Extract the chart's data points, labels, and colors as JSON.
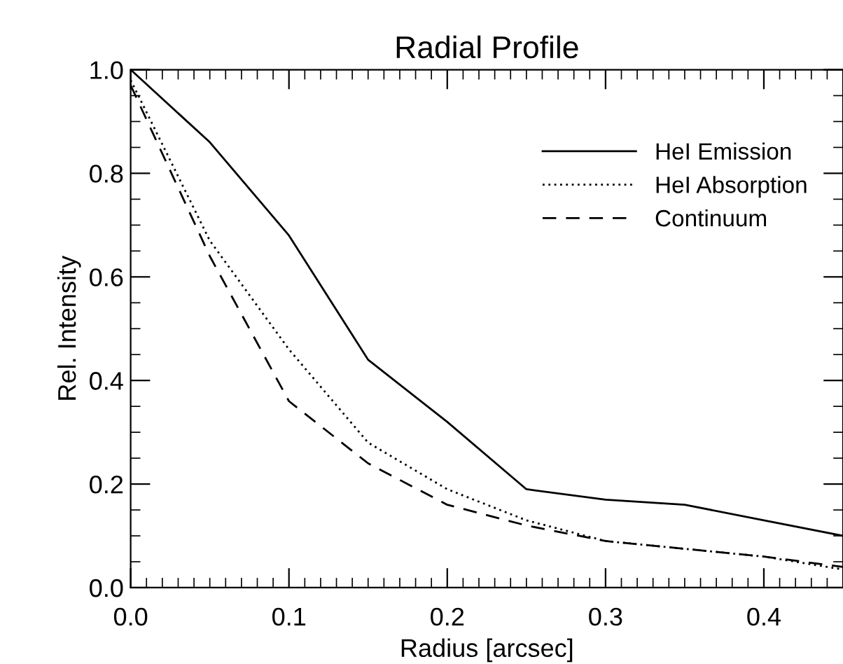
{
  "chart_data": {
    "type": "line",
    "title": "Radial Profile",
    "xlabel": "Radius [arcsec]",
    "ylabel": "Rel. Intensity",
    "x": [
      0,
      0.05,
      0.1,
      0.15,
      0.2,
      0.25,
      0.3,
      0.35,
      0.4,
      0.45
    ],
    "series": [
      {
        "name": "HeI Emission",
        "color": "#000000",
        "line_style": "solid",
        "values": [
          1.0,
          0.86,
          0.68,
          0.44,
          0.32,
          0.19,
          0.17,
          0.16,
          0.13,
          0.1
        ]
      },
      {
        "name": "HeI Absorption",
        "color": "#000000",
        "line_style": "dotted",
        "values": [
          0.98,
          0.67,
          0.46,
          0.28,
          0.19,
          0.13,
          0.09,
          0.075,
          0.06,
          0.035
        ]
      },
      {
        "name": "Continuum",
        "color": "#000000",
        "line_style": "dashed",
        "values": [
          0.97,
          0.64,
          0.36,
          0.24,
          0.16,
          0.12,
          0.09,
          0.075,
          0.06,
          0.04
        ]
      }
    ],
    "xlim": [
      0,
      0.45
    ],
    "xticks": [
      {
        "value": 0,
        "label": "0.0"
      },
      0.1,
      0.2,
      0.3,
      0.4
    ],
    "ylim": [
      0,
      1.0
    ],
    "yticks": [
      {
        "value": 0,
        "label": "0.0"
      },
      0.2,
      0.4,
      0.6,
      0.8,
      {
        "value": 1.0,
        "label": "1.0"
      }
    ],
    "grid": false,
    "legend": "top right"
  }
}
